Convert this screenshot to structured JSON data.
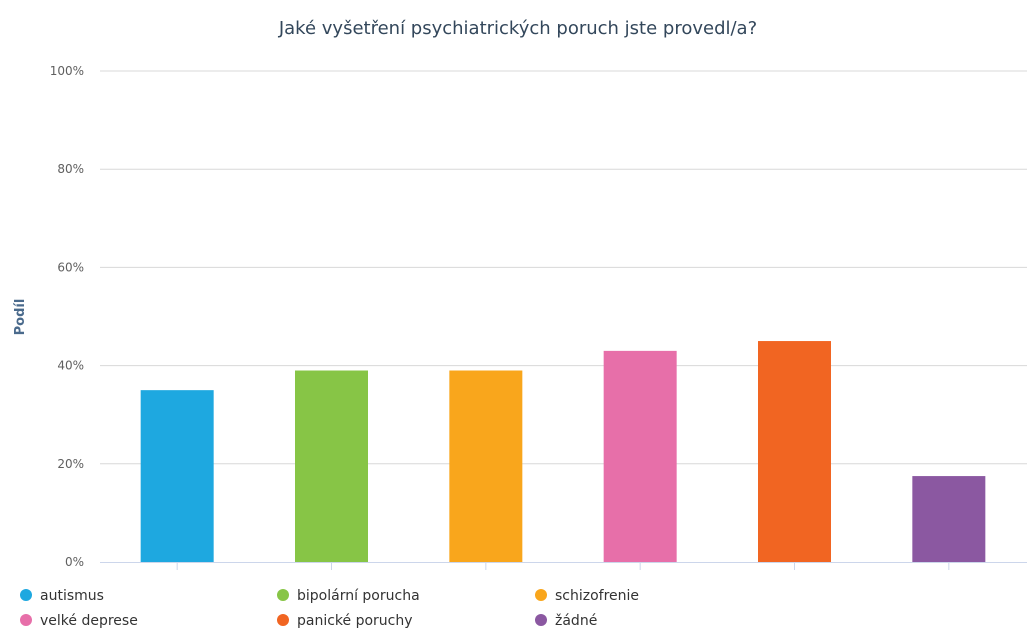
{
  "chart_data": {
    "type": "bar",
    "title": "Jaké vyšetření psychiatrických poruch jste provedl/a?",
    "xlabel": "",
    "ylabel": "Podíl",
    "ylim": [
      0,
      100
    ],
    "yticks": [
      "0%",
      "20%",
      "40%",
      "60%",
      "80%",
      "100%"
    ],
    "grid": true,
    "legend_position": "bottom-left",
    "categories": [
      "autismus",
      "bipolární porucha",
      "schizofrenie",
      "velké deprese",
      "panické poruchy",
      "žádné"
    ],
    "values": [
      35,
      39,
      39,
      43,
      45,
      17.5
    ],
    "colors": [
      "#1ea8e0",
      "#87c546",
      "#f9a61c",
      "#e76fa9",
      "#f16522",
      "#8b58a1"
    ]
  }
}
